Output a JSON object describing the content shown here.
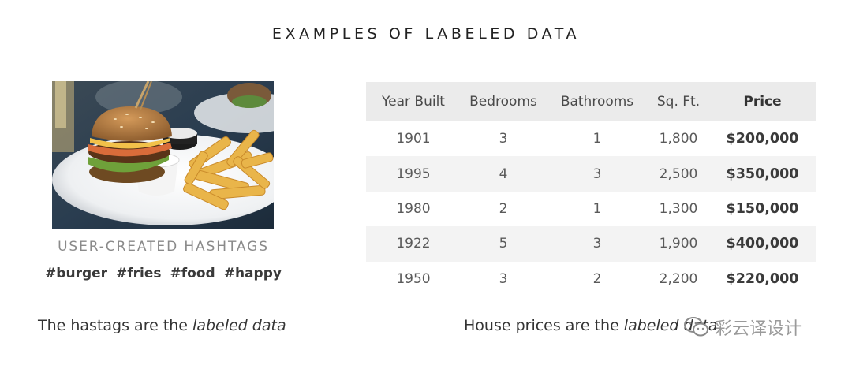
{
  "title": "EXAMPLES OF LABELED DATA",
  "left_panel": {
    "image_name": "burger-and-fries-photo",
    "hashtag_heading": "USER-CREATED HASHTAGS",
    "hashtags": [
      "#burger",
      "#fries",
      "#food",
      "#happy"
    ],
    "caption_prefix": "The hastags are the ",
    "caption_em": "labeled data"
  },
  "table": {
    "headers": [
      "Year Built",
      "Bedrooms",
      "Bathrooms",
      "Sq. Ft.",
      "Price"
    ],
    "rows": [
      [
        "1901",
        "3",
        "1",
        "1,800",
        "$200,000"
      ],
      [
        "1995",
        "4",
        "3",
        "2,500",
        "$350,000"
      ],
      [
        "1980",
        "2",
        "1",
        "1,300",
        "$150,000"
      ],
      [
        "1922",
        "5",
        "3",
        "1,900",
        "$400,000"
      ],
      [
        "1950",
        "3",
        "2",
        "2,200",
        "$220,000"
      ]
    ],
    "caption_prefix": "House prices are the ",
    "caption_em": "labeled data"
  },
  "watermark": {
    "text": "彩云译设计",
    "icon": "wechat-icon"
  },
  "colors": {
    "header_bg": "#ebebeb",
    "alt_row_bg": "#f3f3f3",
    "photo_table_dark": "#24384a",
    "bun": "#b9824a",
    "fries": "#e9b54a"
  }
}
